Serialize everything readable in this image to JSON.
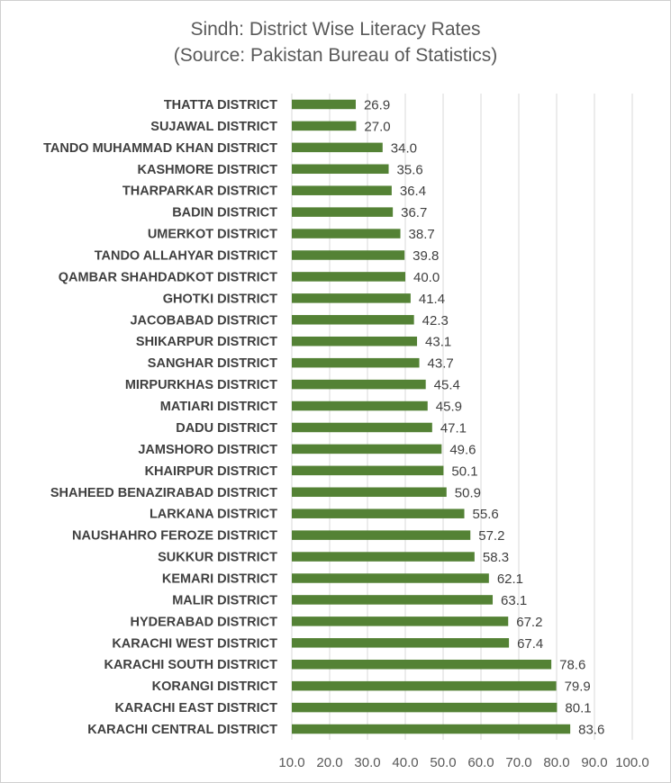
{
  "chart_data": {
    "type": "bar",
    "orientation": "horizontal",
    "title": "Sindh: District Wise Literacy Rates",
    "subtitle": "(Source: Pakistan Bureau of Statistics)",
    "categories": [
      "THATTA DISTRICT",
      "SUJAWAL DISTRICT",
      "TANDO MUHAMMAD KHAN DISTRICT",
      "KASHMORE DISTRICT",
      "THARPARKAR DISTRICT",
      "BADIN DISTRICT",
      "UMERKOT DISTRICT",
      "TANDO ALLAHYAR DISTRICT",
      "QAMBAR SHAHDADKOT DISTRICT",
      "GHOTKI DISTRICT",
      "JACOBABAD DISTRICT",
      "SHIKARPUR DISTRICT",
      "SANGHAR DISTRICT",
      "MIRPURKHAS DISTRICT",
      "MATIARI DISTRICT",
      "DADU DISTRICT",
      "JAMSHORO DISTRICT",
      "KHAIRPUR DISTRICT",
      "SHAHEED BENAZIRABAD DISTRICT",
      "LARKANA DISTRICT",
      "NAUSHAHRO FEROZE DISTRICT",
      "SUKKUR DISTRICT",
      "KEMARI DISTRICT",
      "MALIR DISTRICT",
      "HYDERABAD DISTRICT",
      "KARACHI WEST DISTRICT",
      "KARACHI SOUTH DISTRICT",
      "KORANGI DISTRICT",
      "KARACHI EAST DISTRICT",
      "KARACHI CENTRAL DISTRICT"
    ],
    "values": [
      26.9,
      27.0,
      34.0,
      35.6,
      36.4,
      36.7,
      38.7,
      39.8,
      40.0,
      41.4,
      42.3,
      43.1,
      43.7,
      45.4,
      45.9,
      47.1,
      49.6,
      50.1,
      50.9,
      55.6,
      57.2,
      58.3,
      62.1,
      63.1,
      67.2,
      67.4,
      78.6,
      79.9,
      80.1,
      83.6
    ],
    "value_labels": [
      "26.9",
      "27.0",
      "34.0",
      "35.6",
      "36.4",
      "36.7",
      "38.7",
      "39.8",
      "40.0",
      "41.4",
      "42.3",
      "43.1",
      "43.7",
      "45.4",
      "45.9",
      "47.1",
      "49.6",
      "50.1",
      "50.9",
      "55.6",
      "57.2",
      "58.3",
      "62.1",
      "63.1",
      "67.2",
      "67.4",
      "78.6",
      "79.9",
      "80.1",
      "83.6"
    ],
    "xlim": [
      10,
      100
    ],
    "ticks": [
      "10.0",
      "20.0",
      "30.0",
      "40.0",
      "50.0",
      "60.0",
      "70.0",
      "80.0",
      "90.0",
      "100.0"
    ],
    "xlabel": "",
    "ylabel": "",
    "grid": "vertical",
    "legend": "none",
    "bar_color": "#548235"
  }
}
